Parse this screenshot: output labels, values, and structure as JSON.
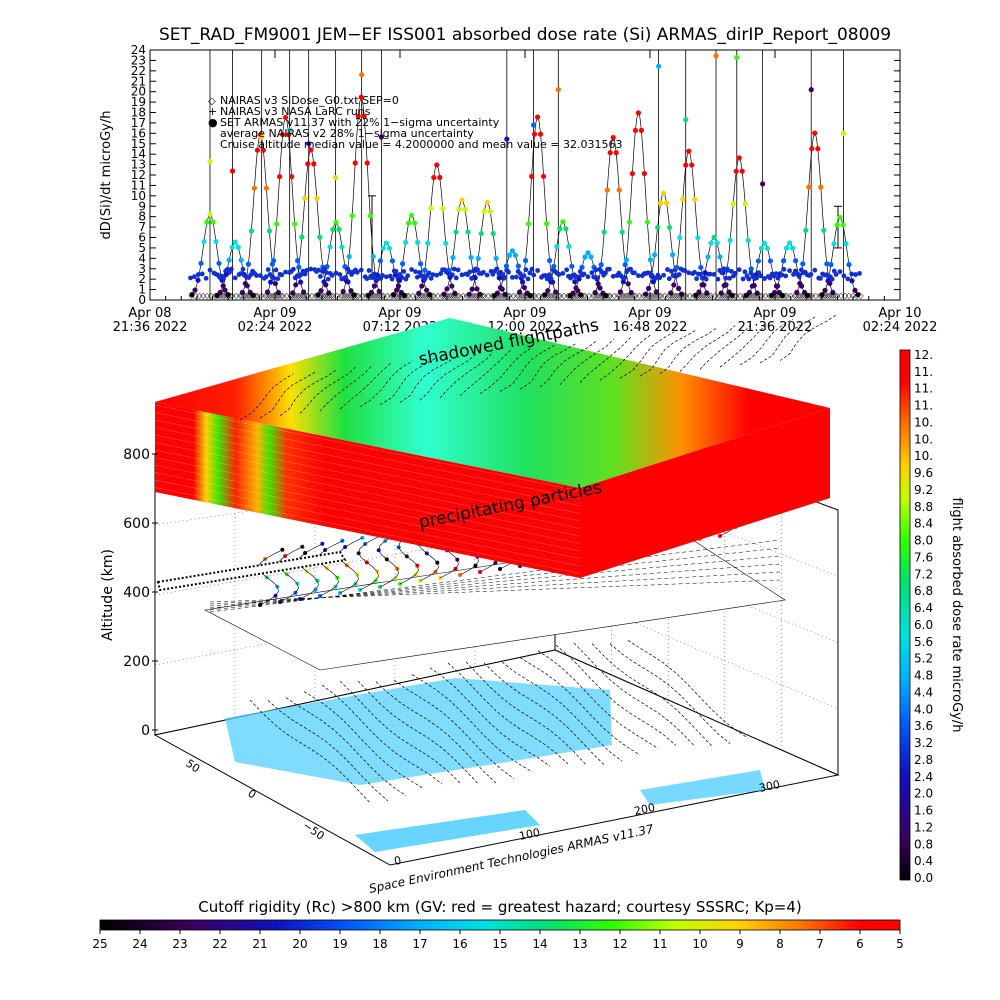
{
  "title": "SET_RAD_FM9001  JEM−EF ISS001 absorbed dose rate (Si) ARMAS_dirIP_Report_08009",
  "chart_data": [
    {
      "type": "scatter",
      "ylabel": "dD(Si)/dt microGy/h",
      "ylim": [
        0,
        24
      ],
      "y_ticks": [
        "0",
        "1",
        "2",
        "3",
        "4",
        "5",
        "6",
        "7",
        "8",
        "9",
        "10",
        "11",
        "12",
        "13",
        "14",
        "15",
        "16",
        "17",
        "18",
        "19",
        "20",
        "21",
        "22",
        "23",
        "24"
      ],
      "x_ticks": [
        {
          "l1": "Apr 08",
          "l2": "21:36 2022"
        },
        {
          "l1": "Apr 09",
          "l2": "02:24 2022"
        },
        {
          "l1": "Apr 09",
          "l2": "07:12 2022"
        },
        {
          "l1": "Apr 09",
          "l2": "12:00 2022"
        },
        {
          "l1": "Apr 09",
          "l2": "16:48 2022"
        },
        {
          "l1": "Apr 09",
          "l2": "21:36 2022"
        },
        {
          "l1": "Apr 10",
          "l2": "02:24 2022"
        }
      ],
      "legend": [
        "NAIRAS v3 SiDose_G0.txt SEP=0",
        "NAIRAS v3 NASA LaRC runs",
        "SET ARMAS v11.37 with 22% 1−sigma uncertainty",
        "average NAIRAS v2 28% 1−sigma uncertainty",
        "Cruise altitude median value = 4.2000000 and mean value = 32.031563"
      ],
      "legend_symbols": [
        "◇",
        "+",
        "●"
      ],
      "series": [
        {
          "name": "SET ARMAS v11.37 with 22% 1−sigma uncertainty",
          "values_description": "periodic orbital passes, baseline 1–4 microGy/h with spikes to 10–24 microGy/h"
        }
      ]
    },
    {
      "type": "heatmap",
      "zlabel": "Altitude (km)",
      "z_ticks": [
        "0",
        "200",
        "400",
        "600",
        "800"
      ],
      "lat_ticks": [
        "50",
        "0",
        "−50"
      ],
      "lon_ticks": [
        "0",
        "100",
        "200",
        "300"
      ],
      "annotations": [
        "shadowed flightpaths",
        "precipitating particles"
      ],
      "credit": "Space Environment Technologies ARMAS v11.37"
    }
  ],
  "right_colorbar": {
    "label": "flight absorbed dose rate microGy/h",
    "ticks": [
      "12.",
      "11.",
      "11.",
      "11.",
      "10.",
      "10.",
      "10.",
      "9.6",
      "9.2",
      "8.8",
      "8.4",
      "8.0",
      "7.6",
      "7.2",
      "6.8",
      "6.4",
      "6.0",
      "5.6",
      "5.2",
      "4.8",
      "4.4",
      "4.0",
      "3.6",
      "3.2",
      "2.8",
      "2.4",
      "2.0",
      "1.6",
      "1.2",
      "0.8",
      "0.4",
      "0.0"
    ]
  },
  "bottom_colorbar": {
    "title": "Cutoff rigidity (Rc) >800 km (GV: red = greatest hazard; courtesy SSSRC; Kp=4)",
    "ticks": [
      "25",
      "24",
      "23",
      "22",
      "21",
      "20",
      "19",
      "18",
      "17",
      "16",
      "15",
      "14",
      "13",
      "12",
      "11",
      "10",
      "9",
      "8",
      "7",
      "6",
      "5"
    ]
  },
  "colors": {
    "rainbow": [
      "#000000",
      "#3b0060",
      "#1010c0",
      "#0060ff",
      "#00b0ff",
      "#00e0e0",
      "#00e070",
      "#30ff00",
      "#c0ff00",
      "#ffd000",
      "#ff7000",
      "#ff0000"
    ],
    "map_ocean": "#55d0ff",
    "map_land": "#ffffff"
  }
}
